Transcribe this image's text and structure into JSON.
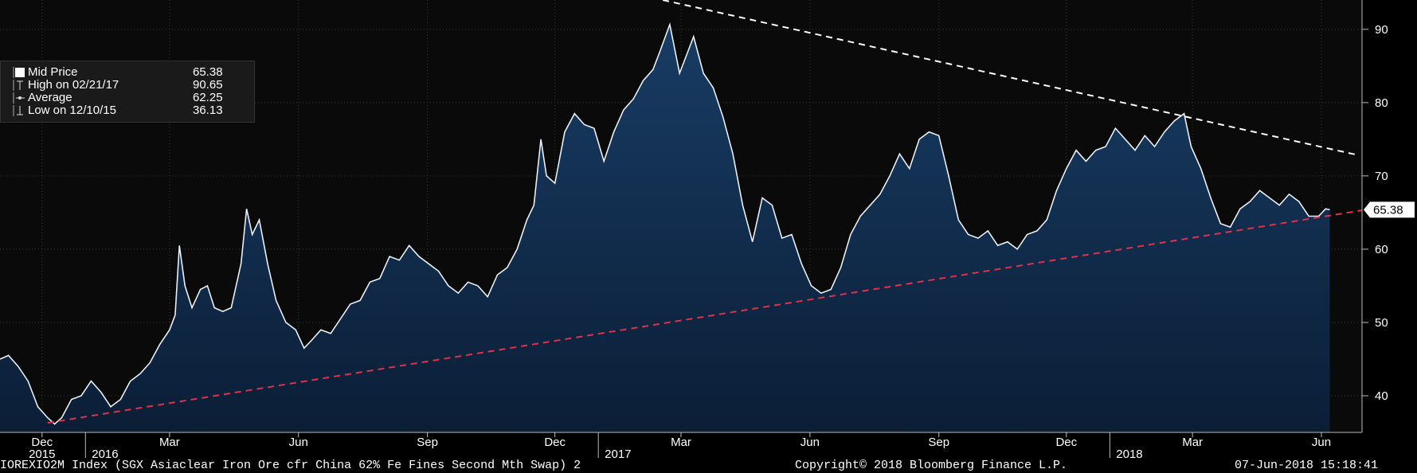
{
  "chart_data": {
    "type": "area",
    "colors": {
      "background": "#000000",
      "plot_background": "#0a0a0a",
      "area_fill_top": "#183c64",
      "area_fill_bottom": "#0b1e36",
      "line": "#e8eef5",
      "support_trendline": "#e0304a",
      "resistance_trendline": "#ffffff",
      "grid": "#3a3a3a",
      "last_price_label_bg": "#ffffff",
      "last_price_label_text": "#000000"
    },
    "y_axis": {
      "position": "right",
      "ticks": [
        40,
        50,
        60,
        70,
        80,
        90
      ],
      "range": [
        35,
        94
      ]
    },
    "x_axis": {
      "range": [
        "2015-11-01",
        "2018-06-30"
      ],
      "month_ticks": [
        {
          "date": "2015-12-01",
          "label": "Dec"
        },
        {
          "date": "2016-03-01",
          "label": "Mar"
        },
        {
          "date": "2016-06-01",
          "label": "Jun"
        },
        {
          "date": "2016-09-01",
          "label": "Sep"
        },
        {
          "date": "2016-12-01",
          "label": "Dec"
        },
        {
          "date": "2017-03-01",
          "label": "Mar"
        },
        {
          "date": "2017-06-01",
          "label": "Jun"
        },
        {
          "date": "2017-09-01",
          "label": "Sep"
        },
        {
          "date": "2017-12-01",
          "label": "Dec"
        },
        {
          "date": "2018-03-01",
          "label": "Mar"
        },
        {
          "date": "2018-06-01",
          "label": "Jun"
        }
      ],
      "year_ticks": [
        {
          "date": "2016-01-01",
          "label": "2016"
        },
        {
          "date": "2017-01-01",
          "label": "2017"
        },
        {
          "date": "2018-01-01",
          "label": "2018"
        }
      ],
      "year_labels": [
        {
          "date": "2015-12-01",
          "label": "2015"
        },
        {
          "date": "2016-01-15",
          "label": "2016"
        },
        {
          "date": "2017-01-15",
          "label": "2017"
        },
        {
          "date": "2018-01-15",
          "label": "2018"
        }
      ]
    },
    "series": [
      {
        "name": "Mid Price",
        "points": [
          [
            "2015-11-01",
            45.0
          ],
          [
            "2015-11-07",
            45.5
          ],
          [
            "2015-11-14",
            44.0
          ],
          [
            "2015-11-21",
            42.0
          ],
          [
            "2015-11-28",
            38.5
          ],
          [
            "2015-12-05",
            37.0
          ],
          [
            "2015-12-10",
            36.13
          ],
          [
            "2015-12-15",
            37.0
          ],
          [
            "2015-12-22",
            39.5
          ],
          [
            "2015-12-29",
            40.0
          ],
          [
            "2016-01-05",
            42.0
          ],
          [
            "2016-01-12",
            40.5
          ],
          [
            "2016-01-19",
            38.5
          ],
          [
            "2016-01-26",
            39.5
          ],
          [
            "2016-02-02",
            42.0
          ],
          [
            "2016-02-09",
            43.0
          ],
          [
            "2016-02-16",
            44.5
          ],
          [
            "2016-02-23",
            47.0
          ],
          [
            "2016-03-01",
            49.0
          ],
          [
            "2016-03-05",
            51.0
          ],
          [
            "2016-03-08",
            60.5
          ],
          [
            "2016-03-12",
            55.0
          ],
          [
            "2016-03-17",
            52.0
          ],
          [
            "2016-03-23",
            54.5
          ],
          [
            "2016-03-28",
            55.0
          ],
          [
            "2016-04-02",
            52.0
          ],
          [
            "2016-04-08",
            51.5
          ],
          [
            "2016-04-14",
            52.0
          ],
          [
            "2016-04-21",
            58.0
          ],
          [
            "2016-04-25",
            65.5
          ],
          [
            "2016-04-29",
            62.0
          ],
          [
            "2016-05-04",
            64.0
          ],
          [
            "2016-05-10",
            58.0
          ],
          [
            "2016-05-16",
            53.0
          ],
          [
            "2016-05-23",
            50.0
          ],
          [
            "2016-05-30",
            49.0
          ],
          [
            "2016-06-05",
            46.5
          ],
          [
            "2016-06-10",
            47.5
          ],
          [
            "2016-06-17",
            49.0
          ],
          [
            "2016-06-24",
            48.5
          ],
          [
            "2016-07-01",
            50.5
          ],
          [
            "2016-07-08",
            52.5
          ],
          [
            "2016-07-15",
            53.0
          ],
          [
            "2016-07-22",
            55.5
          ],
          [
            "2016-07-29",
            56.0
          ],
          [
            "2016-08-05",
            59.0
          ],
          [
            "2016-08-12",
            58.5
          ],
          [
            "2016-08-19",
            60.5
          ],
          [
            "2016-08-26",
            59.0
          ],
          [
            "2016-09-02",
            58.0
          ],
          [
            "2016-09-09",
            57.0
          ],
          [
            "2016-09-16",
            55.0
          ],
          [
            "2016-09-23",
            54.0
          ],
          [
            "2016-09-30",
            55.5
          ],
          [
            "2016-10-07",
            55.0
          ],
          [
            "2016-10-14",
            53.5
          ],
          [
            "2016-10-21",
            56.5
          ],
          [
            "2016-10-28",
            57.5
          ],
          [
            "2016-11-04",
            60.0
          ],
          [
            "2016-11-11",
            64.0
          ],
          [
            "2016-11-16",
            66.0
          ],
          [
            "2016-11-21",
            75.0
          ],
          [
            "2016-11-25",
            70.0
          ],
          [
            "2016-12-01",
            69.0
          ],
          [
            "2016-12-08",
            76.0
          ],
          [
            "2016-12-15",
            78.5
          ],
          [
            "2016-12-22",
            77.0
          ],
          [
            "2016-12-29",
            76.5
          ],
          [
            "2017-01-05",
            72.0
          ],
          [
            "2017-01-12",
            76.0
          ],
          [
            "2017-01-19",
            79.0
          ],
          [
            "2017-01-26",
            80.5
          ],
          [
            "2017-02-02",
            83.0
          ],
          [
            "2017-02-09",
            84.5
          ],
          [
            "2017-02-14",
            87.0
          ],
          [
            "2017-02-21",
            90.65
          ],
          [
            "2017-02-28",
            84.0
          ],
          [
            "2017-03-05",
            86.5
          ],
          [
            "2017-03-10",
            89.0
          ],
          [
            "2017-03-17",
            84.0
          ],
          [
            "2017-03-24",
            82.0
          ],
          [
            "2017-03-31",
            78.0
          ],
          [
            "2017-04-07",
            73.0
          ],
          [
            "2017-04-14",
            66.0
          ],
          [
            "2017-04-21",
            61.0
          ],
          [
            "2017-04-28",
            67.0
          ],
          [
            "2017-05-05",
            66.0
          ],
          [
            "2017-05-12",
            61.5
          ],
          [
            "2017-05-19",
            62.0
          ],
          [
            "2017-05-26",
            58.0
          ],
          [
            "2017-06-02",
            55.0
          ],
          [
            "2017-06-09",
            54.0
          ],
          [
            "2017-06-16",
            54.5
          ],
          [
            "2017-06-23",
            57.5
          ],
          [
            "2017-06-30",
            62.0
          ],
          [
            "2017-07-07",
            64.5
          ],
          [
            "2017-07-14",
            66.0
          ],
          [
            "2017-07-21",
            67.5
          ],
          [
            "2017-07-28",
            70.0
          ],
          [
            "2017-08-04",
            73.0
          ],
          [
            "2017-08-11",
            71.0
          ],
          [
            "2017-08-18",
            75.0
          ],
          [
            "2017-08-25",
            76.0
          ],
          [
            "2017-09-01",
            75.5
          ],
          [
            "2017-09-08",
            70.0
          ],
          [
            "2017-09-15",
            64.0
          ],
          [
            "2017-09-22",
            62.0
          ],
          [
            "2017-09-29",
            61.5
          ],
          [
            "2017-10-06",
            62.5
          ],
          [
            "2017-10-13",
            60.5
          ],
          [
            "2017-10-20",
            61.0
          ],
          [
            "2017-10-27",
            60.0
          ],
          [
            "2017-11-03",
            62.0
          ],
          [
            "2017-11-10",
            62.5
          ],
          [
            "2017-11-17",
            64.0
          ],
          [
            "2017-11-24",
            68.0
          ],
          [
            "2017-12-01",
            71.0
          ],
          [
            "2017-12-08",
            73.5
          ],
          [
            "2017-12-15",
            72.0
          ],
          [
            "2017-12-22",
            73.5
          ],
          [
            "2017-12-29",
            74.0
          ],
          [
            "2018-01-05",
            76.5
          ],
          [
            "2018-01-12",
            75.0
          ],
          [
            "2018-01-19",
            73.5
          ],
          [
            "2018-01-26",
            75.5
          ],
          [
            "2018-02-02",
            74.0
          ],
          [
            "2018-02-09",
            76.0
          ],
          [
            "2018-02-16",
            77.5
          ],
          [
            "2018-02-23",
            78.5
          ],
          [
            "2018-02-28",
            74.0
          ],
          [
            "2018-03-07",
            71.0
          ],
          [
            "2018-03-14",
            67.0
          ],
          [
            "2018-03-21",
            63.5
          ],
          [
            "2018-03-28",
            63.0
          ],
          [
            "2018-04-04",
            65.5
          ],
          [
            "2018-04-11",
            66.5
          ],
          [
            "2018-04-18",
            68.0
          ],
          [
            "2018-04-25",
            67.0
          ],
          [
            "2018-05-02",
            66.0
          ],
          [
            "2018-05-09",
            67.5
          ],
          [
            "2018-05-16",
            66.5
          ],
          [
            "2018-05-23",
            64.5
          ],
          [
            "2018-05-30",
            64.5
          ],
          [
            "2018-06-04",
            65.5
          ],
          [
            "2018-06-07",
            65.38
          ]
        ]
      }
    ],
    "trendlines": [
      {
        "style": "dashed",
        "color": "#e0304a",
        "from": [
          "2015-12-05",
          36.3
        ],
        "to": [
          "2018-06-30",
          65.3
        ]
      },
      {
        "style": "dashed",
        "color": "#ffffff",
        "from": [
          "2017-02-16",
          94.0
        ],
        "to": [
          "2018-06-28",
          72.8
        ]
      }
    ],
    "last_value_label": "65.38",
    "legend": [
      {
        "icon": "filled-square-icon",
        "label": "Mid Price",
        "value": "65.38"
      },
      {
        "icon": "high-marker-icon",
        "label": "High on 02/21/17",
        "value": "90.65"
      },
      {
        "icon": "average-marker-icon",
        "label": "Average",
        "value": "62.25"
      },
      {
        "icon": "low-marker-icon",
        "label": "Low on 12/10/15",
        "value": "36.13"
      }
    ]
  },
  "footer": {
    "left": "IOREXIO2M Index (SGX Asiaclear Iron Ore cfr China 62% Fe Fines Second Mth Swap) 2",
    "center": "Copyright© 2018 Bloomberg Finance L.P.",
    "right": "07-Jun-2018 15:18:41"
  }
}
